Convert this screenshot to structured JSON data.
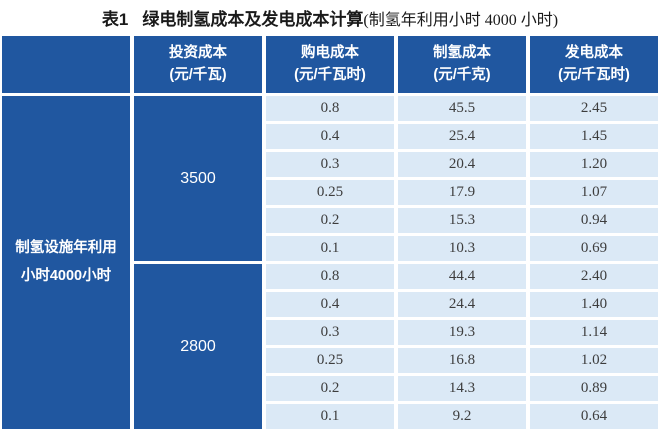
{
  "title": {
    "index": "表1",
    "main": "绿电制氢成本及发电成本计算",
    "note": "(制氢年利用小时 4000 小时)"
  },
  "colors": {
    "header_blue": "#2057A0",
    "row_light_blue": "#DBE9F6",
    "header_text": "#FFFFFF",
    "data_text": "#3D3D3D"
  },
  "table": {
    "headers": [
      {
        "line1": "投资成本",
        "line2": "(元/千瓦)"
      },
      {
        "line1": "购电成本",
        "line2": "(元/千瓦时)"
      },
      {
        "line1": "制氢成本",
        "line2": "(元/千克)"
      },
      {
        "line1": "发电成本",
        "line2": "(元/千瓦时)"
      }
    ],
    "row_label": {
      "line1": "制氢设施年利用",
      "line2": "小时4000小时"
    },
    "groups": [
      {
        "investment": "3500",
        "rows": [
          [
            "0.8",
            "45.5",
            "2.45"
          ],
          [
            "0.4",
            "25.4",
            "1.45"
          ],
          [
            "0.3",
            "20.4",
            "1.20"
          ],
          [
            "0.25",
            "17.9",
            "1.07"
          ],
          [
            "0.2",
            "15.3",
            "0.94"
          ],
          [
            "0.1",
            "10.3",
            "0.69"
          ]
        ]
      },
      {
        "investment": "2800",
        "rows": [
          [
            "0.8",
            "44.4",
            "2.40"
          ],
          [
            "0.4",
            "24.4",
            "1.40"
          ],
          [
            "0.3",
            "19.3",
            "1.14"
          ],
          [
            "0.25",
            "16.8",
            "1.02"
          ],
          [
            "0.2",
            "14.3",
            "0.89"
          ],
          [
            "0.1",
            "9.2",
            "0.64"
          ]
        ]
      }
    ]
  },
  "chart_data": {
    "type": "table",
    "title": "表1 绿电制氢成本及发电成本计算(制氢年利用小时 4000 小时)",
    "row_group_label": "制氢设施年利用小时4000小时",
    "columns": [
      "投资成本(元/千瓦)",
      "购电成本(元/千瓦时)",
      "制氢成本(元/千克)",
      "发电成本(元/千瓦时)"
    ],
    "rows": [
      [
        3500,
        0.8,
        45.5,
        2.45
      ],
      [
        3500,
        0.4,
        25.4,
        1.45
      ],
      [
        3500,
        0.3,
        20.4,
        1.2
      ],
      [
        3500,
        0.25,
        17.9,
        1.07
      ],
      [
        3500,
        0.2,
        15.3,
        0.94
      ],
      [
        3500,
        0.1,
        10.3,
        0.69
      ],
      [
        2800,
        0.8,
        44.4,
        2.4
      ],
      [
        2800,
        0.4,
        24.4,
        1.4
      ],
      [
        2800,
        0.3,
        19.3,
        1.14
      ],
      [
        2800,
        0.25,
        16.8,
        1.02
      ],
      [
        2800,
        0.2,
        14.3,
        0.89
      ],
      [
        2800,
        0.1,
        9.2,
        0.64
      ]
    ]
  }
}
